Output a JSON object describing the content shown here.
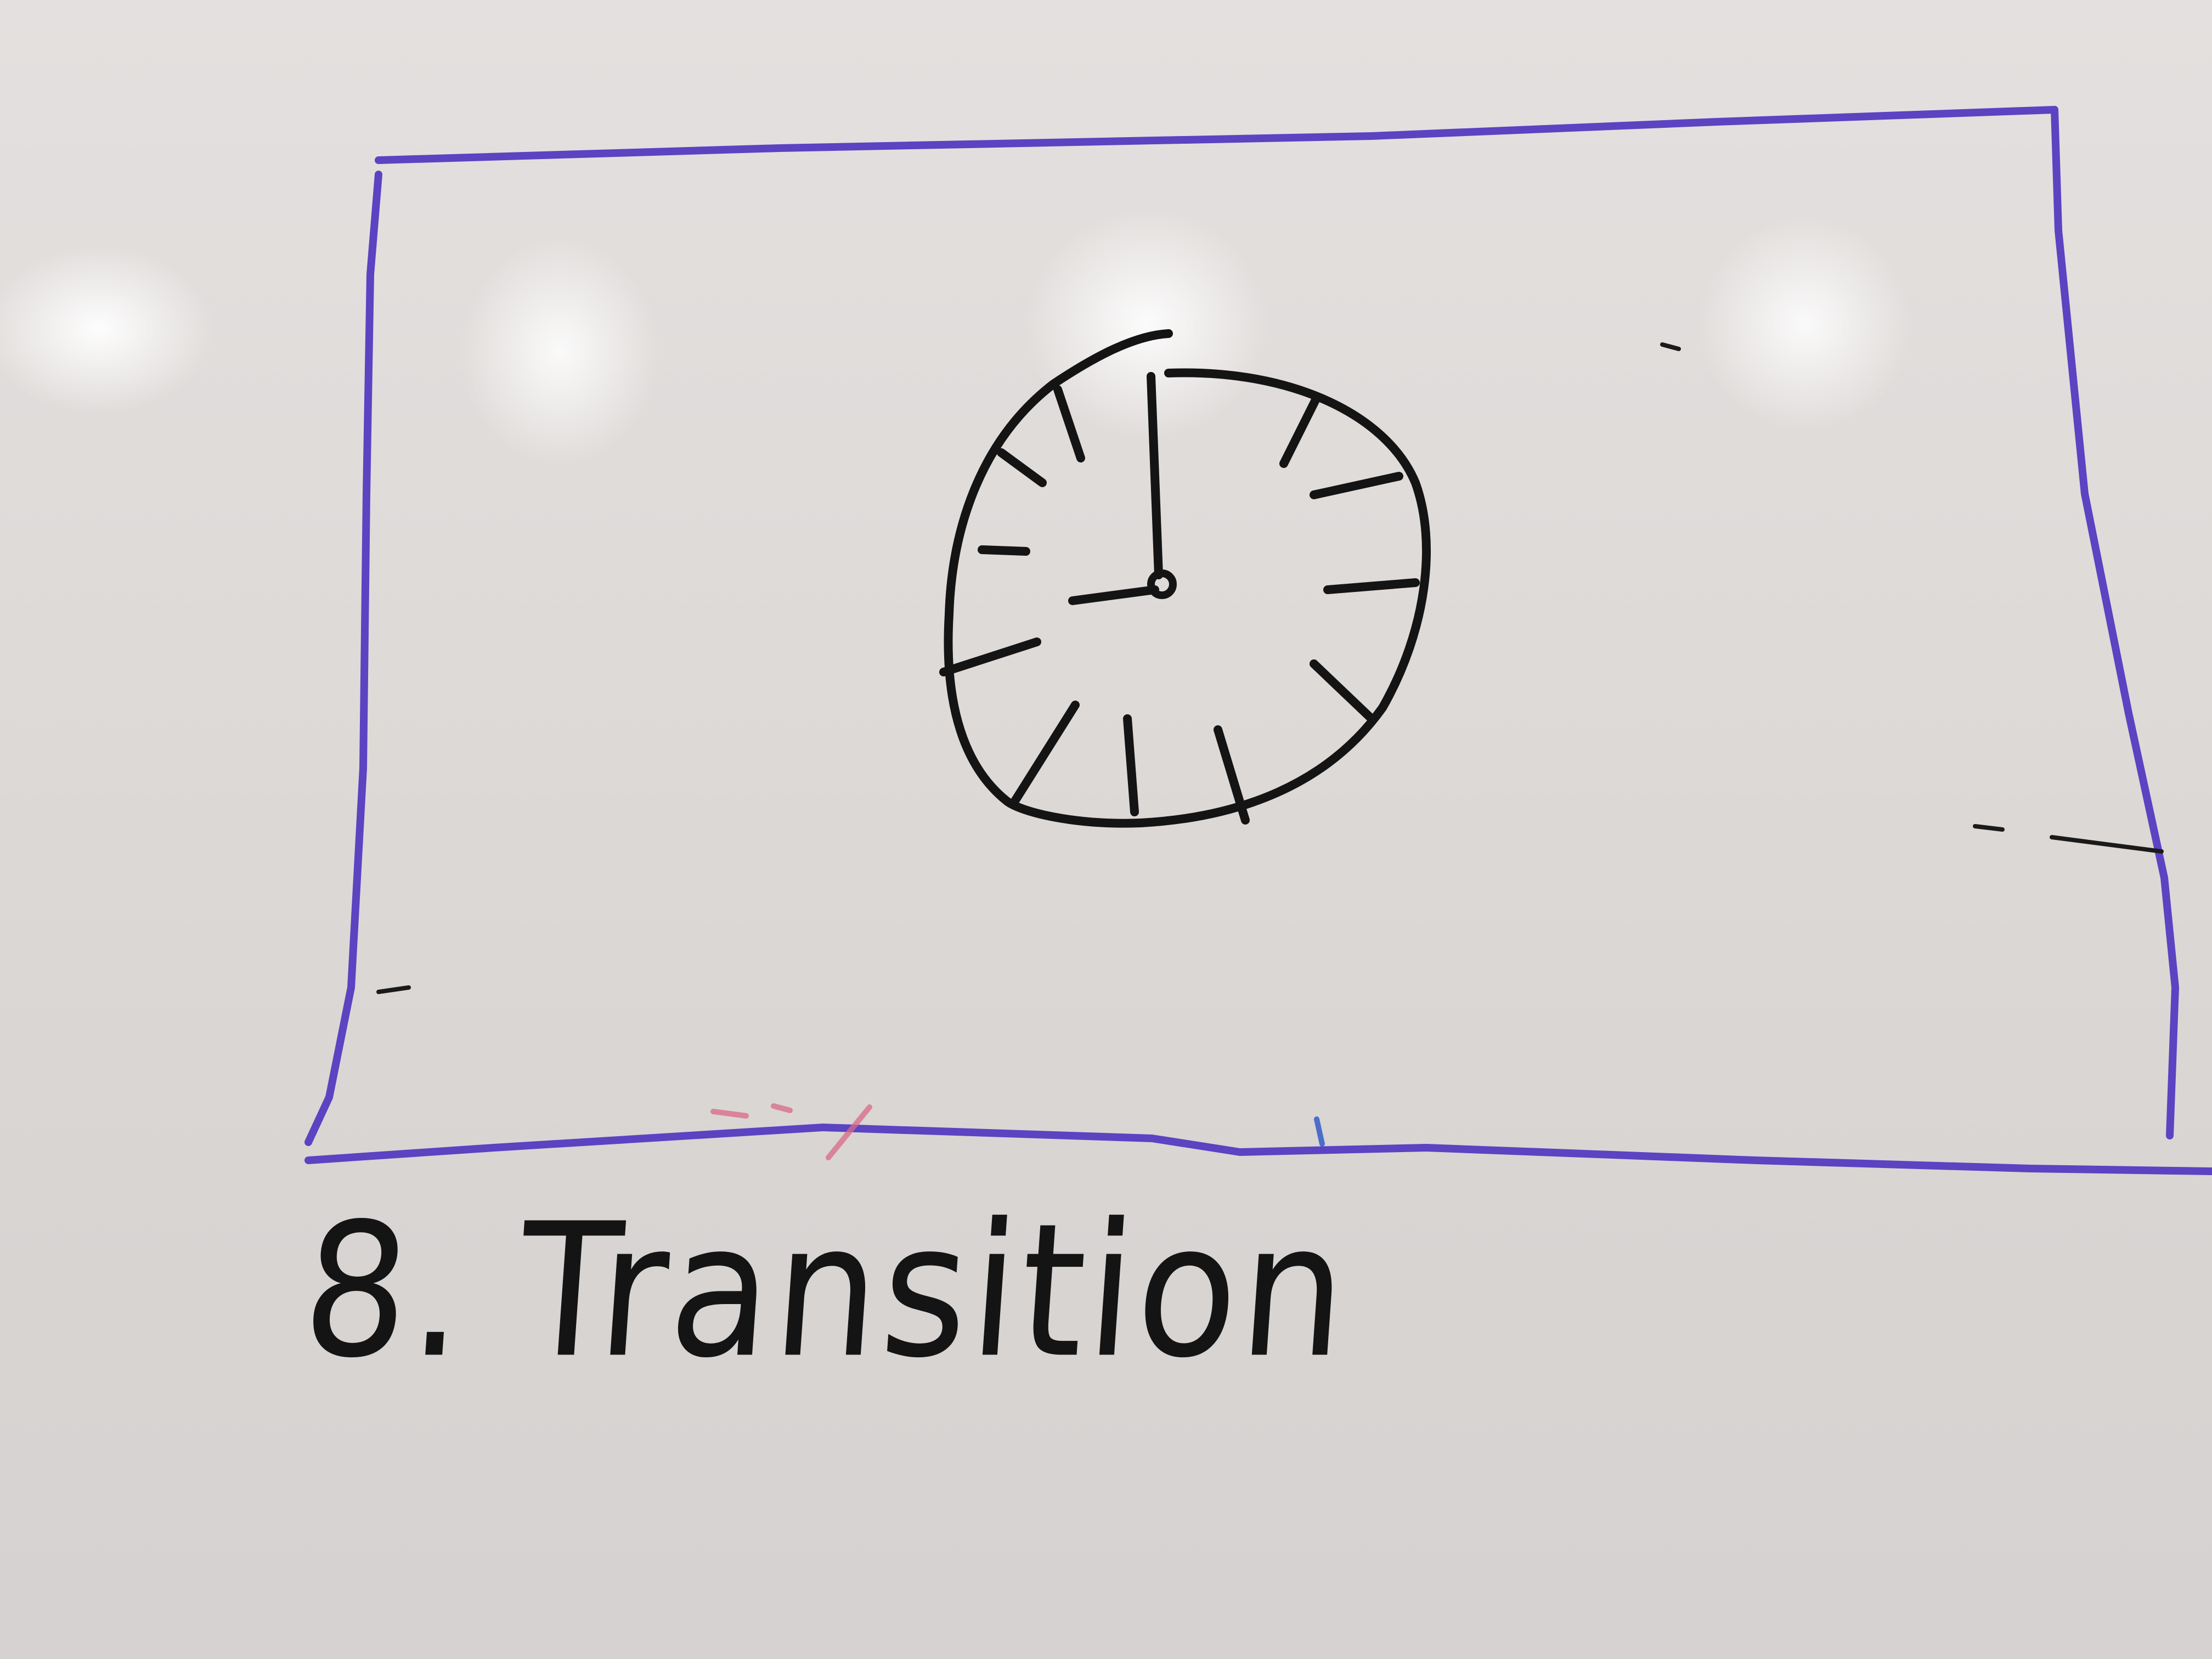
{
  "caption": {
    "number": "8.",
    "title": "Transition"
  },
  "colors": {
    "board": "#dedad8",
    "frame_marker": "#5b43c2",
    "ink": "#141414"
  },
  "icons": {
    "frame": "rectangle-frame-sketch",
    "clock": "clock-icon"
  }
}
